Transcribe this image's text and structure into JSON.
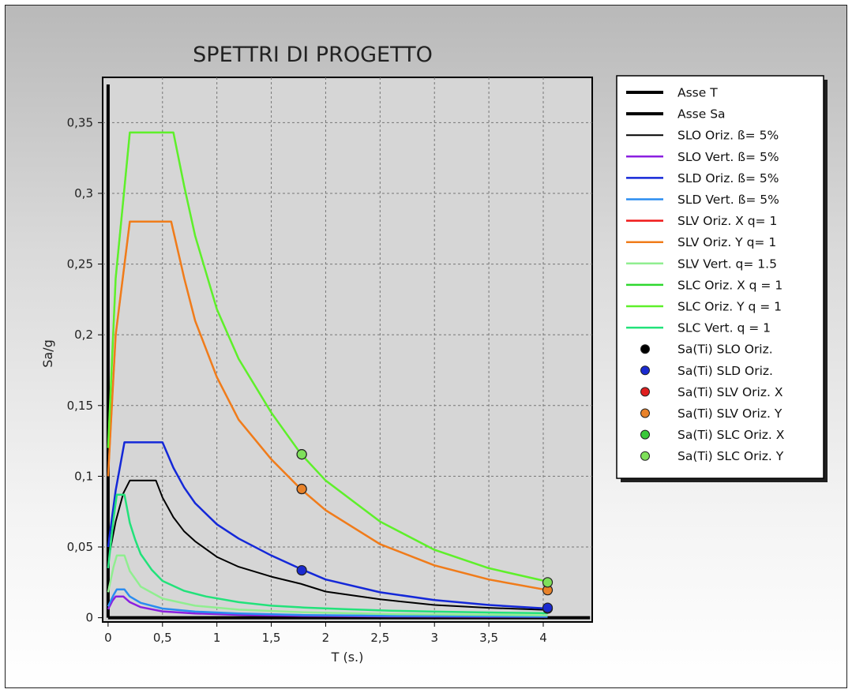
{
  "chart_data": {
    "type": "line",
    "title": "SPETTRI DI PROGETTO",
    "xlabel": "T (s.)",
    "ylabel": "Sa/g",
    "xlim": [
      -0.05,
      4.45
    ],
    "ylim": [
      -0.003,
      0.382
    ],
    "grid": true,
    "legend_position": "right",
    "x_ticks": [
      {
        "value": 0,
        "label": "0"
      },
      {
        "value": 0.5,
        "label": "0,5"
      },
      {
        "value": 1,
        "label": "1"
      },
      {
        "value": 1.5,
        "label": "1,5"
      },
      {
        "value": 2,
        "label": "2"
      },
      {
        "value": 2.5,
        "label": "2,5"
      },
      {
        "value": 3,
        "label": "3"
      },
      {
        "value": 3.5,
        "label": "3,5"
      },
      {
        "value": 4,
        "label": "4"
      }
    ],
    "y_ticks": [
      {
        "value": 0,
        "label": "0"
      },
      {
        "value": 0.05,
        "label": "0,05"
      },
      {
        "value": 0.1,
        "label": "0,1"
      },
      {
        "value": 0.15,
        "label": "0,15"
      },
      {
        "value": 0.2,
        "label": "0,2"
      },
      {
        "value": 0.25,
        "label": "0,25"
      },
      {
        "value": 0.3,
        "label": "0,3"
      },
      {
        "value": 0.35,
        "label": "0,35"
      }
    ],
    "legend": [
      {
        "label": "Asse T",
        "color": "#000000",
        "kind": "line",
        "width": 4
      },
      {
        "label": "Asse Sa",
        "color": "#000000",
        "kind": "line",
        "width": 4
      },
      {
        "label": "SLO Oriz. ß= 5%",
        "color": "#000000",
        "kind": "line",
        "width": 2
      },
      {
        "label": "SLO Vert. ß= 5%",
        "color": "#8b1fe0",
        "kind": "line",
        "width": 2.5
      },
      {
        "label": "SLD Oriz. ß= 5%",
        "color": "#1428d8",
        "kind": "line",
        "width": 2.5
      },
      {
        "label": "SLD Vert. ß= 5%",
        "color": "#2a8cf0",
        "kind": "line",
        "width": 2.5
      },
      {
        "label": "SLV Oriz. X q= 1",
        "color": "#f01818",
        "kind": "line",
        "width": 2.5
      },
      {
        "label": "SLV Oriz. Y q= 1",
        "color": "#f07c1a",
        "kind": "line",
        "width": 2.5
      },
      {
        "label": "SLV Vert. q= 1.5",
        "color": "#90ee90",
        "kind": "line",
        "width": 2.5
      },
      {
        "label": "SLC Oriz. X q = 1",
        "color": "#2ed82e",
        "kind": "line",
        "width": 2.5
      },
      {
        "label": "SLC Oriz. Y q = 1",
        "color": "#5ef02a",
        "kind": "line",
        "width": 2.5
      },
      {
        "label": "SLC Vert. q = 1",
        "color": "#22e27a",
        "kind": "line",
        "width": 2.5
      },
      {
        "label": "Sa(Ti) SLO Oriz.",
        "color": "#000000",
        "kind": "marker"
      },
      {
        "label": "Sa(Ti) SLD Oriz.",
        "color": "#1a2ad0",
        "kind": "marker"
      },
      {
        "label": "Sa(Ti) SLV Oriz. X",
        "color": "#e02020",
        "kind": "marker"
      },
      {
        "label": "Sa(Ti) SLV Oriz. Y",
        "color": "#e8822a",
        "kind": "marker"
      },
      {
        "label": "Sa(Ti) SLC Oriz. X",
        "color": "#3ac83a",
        "kind": "marker"
      },
      {
        "label": "Sa(Ti) SLC Oriz. Y",
        "color": "#7ee05a",
        "kind": "marker"
      }
    ],
    "series": [
      {
        "name": "Asse T",
        "color": "#000000",
        "width": 4,
        "x": [
          0,
          4.43
        ],
        "y": [
          0,
          0
        ]
      },
      {
        "name": "Asse Sa",
        "color": "#000000",
        "width": 4,
        "x": [
          0,
          0
        ],
        "y": [
          0,
          0.377
        ]
      },
      {
        "name": "SLO Oriz. ß= 5%",
        "color": "#000000",
        "width": 2,
        "x": [
          0,
          0.07,
          0.14,
          0.2,
          0.3,
          0.44,
          0.5,
          0.6,
          0.7,
          0.8,
          1.0,
          1.2,
          1.5,
          1.77,
          2.0,
          2.5,
          3.0,
          3.5,
          4.04
        ],
        "y": [
          0.04,
          0.068,
          0.088,
          0.097,
          0.097,
          0.097,
          0.085,
          0.071,
          0.061,
          0.054,
          0.043,
          0.036,
          0.029,
          0.024,
          0.0185,
          0.013,
          0.009,
          0.007,
          0.0055
        ]
      },
      {
        "name": "SLO Vert. ß= 5%",
        "color": "#8b1fe0",
        "width": 2.5,
        "x": [
          0,
          0.04,
          0.07,
          0.14,
          0.2,
          0.3,
          0.5,
          0.8,
          1.2,
          1.8,
          2.6,
          3.5,
          4.04
        ],
        "y": [
          0.006,
          0.012,
          0.015,
          0.015,
          0.011,
          0.0075,
          0.0045,
          0.003,
          0.002,
          0.0013,
          0.0009,
          0.0007,
          0.0006
        ]
      },
      {
        "name": "SLD Oriz. ß= 5%",
        "color": "#1428d8",
        "width": 2.5,
        "x": [
          0,
          0.07,
          0.15,
          0.25,
          0.35,
          0.5,
          0.6,
          0.7,
          0.8,
          1.0,
          1.2,
          1.5,
          1.77,
          2.0,
          2.5,
          3.0,
          3.5,
          4.04
        ],
        "y": [
          0.05,
          0.09,
          0.124,
          0.124,
          0.124,
          0.124,
          0.106,
          0.092,
          0.081,
          0.066,
          0.056,
          0.044,
          0.0345,
          0.027,
          0.018,
          0.0125,
          0.009,
          0.0065
        ]
      },
      {
        "name": "SLD Vert. ß= 5%",
        "color": "#2a8cf0",
        "width": 2.5,
        "x": [
          0,
          0.05,
          0.08,
          0.15,
          0.2,
          0.3,
          0.5,
          0.8,
          1.2,
          1.8,
          2.6,
          3.5,
          4.04
        ],
        "y": [
          0.008,
          0.016,
          0.02,
          0.02,
          0.015,
          0.0105,
          0.0065,
          0.0043,
          0.003,
          0.0019,
          0.0013,
          0.001,
          0.0008
        ]
      },
      {
        "name": "SLV Oriz. X q= 1",
        "color": "#f01818",
        "width": 2,
        "x": [
          0,
          0.07,
          0.2,
          0.58,
          0.7,
          0.8,
          1.0,
          1.2,
          1.5,
          1.77,
          2.0,
          2.5,
          3.0,
          3.5,
          4.04
        ],
        "y": [
          0.1,
          0.2,
          0.28,
          0.28,
          0.24,
          0.21,
          0.17,
          0.14,
          0.112,
          0.091,
          0.076,
          0.052,
          0.037,
          0.027,
          0.0195
        ]
      },
      {
        "name": "SLV Oriz. Y q= 1",
        "color": "#f07c1a",
        "width": 2.5,
        "x": [
          0,
          0.07,
          0.2,
          0.58,
          0.7,
          0.8,
          1.0,
          1.2,
          1.5,
          1.77,
          2.0,
          2.5,
          3.0,
          3.5,
          4.04
        ],
        "y": [
          0.1,
          0.2,
          0.28,
          0.28,
          0.24,
          0.21,
          0.17,
          0.14,
          0.112,
          0.091,
          0.076,
          0.052,
          0.037,
          0.027,
          0.0195
        ]
      },
      {
        "name": "SLV Vert. q= 1.5",
        "color": "#90ee90",
        "width": 2.5,
        "x": [
          0,
          0.05,
          0.08,
          0.15,
          0.2,
          0.3,
          0.5,
          0.8,
          1.2,
          1.8,
          2.6,
          3.5,
          4.04
        ],
        "y": [
          0.018,
          0.036,
          0.044,
          0.044,
          0.033,
          0.022,
          0.0135,
          0.0085,
          0.0057,
          0.0038,
          0.0026,
          0.002,
          0.0017
        ]
      },
      {
        "name": "SLC Oriz. X q = 1",
        "color": "#2ed82e",
        "width": 2,
        "x": [
          0,
          0.07,
          0.2,
          0.6,
          0.7,
          0.8,
          1.0,
          1.2,
          1.5,
          1.77,
          2.0,
          2.5,
          3.0,
          3.5,
          4.04
        ],
        "y": [
          0.12,
          0.24,
          0.343,
          0.343,
          0.305,
          0.27,
          0.218,
          0.183,
          0.145,
          0.116,
          0.097,
          0.068,
          0.048,
          0.035,
          0.0255
        ]
      },
      {
        "name": "SLC Oriz. Y q = 1",
        "color": "#5ef02a",
        "width": 2.5,
        "x": [
          0,
          0.07,
          0.2,
          0.6,
          0.7,
          0.8,
          1.0,
          1.2,
          1.5,
          1.77,
          2.0,
          2.5,
          3.0,
          3.5,
          4.04
        ],
        "y": [
          0.12,
          0.24,
          0.343,
          0.343,
          0.305,
          0.27,
          0.218,
          0.183,
          0.145,
          0.116,
          0.097,
          0.068,
          0.048,
          0.035,
          0.0255
        ]
      },
      {
        "name": "SLC Vert. q = 1",
        "color": "#22e27a",
        "width": 2.5,
        "x": [
          0,
          0.05,
          0.08,
          0.15,
          0.2,
          0.25,
          0.3,
          0.4,
          0.5,
          0.7,
          0.9,
          1.2,
          1.5,
          1.8,
          2.2,
          2.6,
          3.0,
          3.5,
          4.04
        ],
        "y": [
          0.035,
          0.07,
          0.087,
          0.087,
          0.067,
          0.055,
          0.045,
          0.034,
          0.026,
          0.019,
          0.015,
          0.011,
          0.0085,
          0.0072,
          0.006,
          0.005,
          0.0043,
          0.0037,
          0.0032
        ]
      }
    ],
    "points": [
      {
        "name": "Sa(Ti) SLO Oriz.",
        "color": "#000000",
        "x": 4.04,
        "y": 0.0065
      },
      {
        "name": "Sa(Ti) SLD Oriz.",
        "color": "#1a2ad0",
        "x": 1.78,
        "y": 0.0335
      },
      {
        "name": "Sa(Ti) SLD Oriz.",
        "color": "#1a2ad0",
        "x": 4.04,
        "y": 0.007
      },
      {
        "name": "Sa(Ti) SLV Oriz. X",
        "color": "#e02020",
        "x": 1.78,
        "y": 0.091
      },
      {
        "name": "Sa(Ti) SLV Oriz. Y",
        "color": "#e8822a",
        "x": 1.78,
        "y": 0.091
      },
      {
        "name": "Sa(Ti) SLV Oriz. Y",
        "color": "#e8822a",
        "x": 4.04,
        "y": 0.0195
      },
      {
        "name": "Sa(Ti) SLC Oriz. X",
        "color": "#3ac83a",
        "x": 1.78,
        "y": 0.1155
      },
      {
        "name": "Sa(Ti) SLC Oriz. Y",
        "color": "#7ee05a",
        "x": 1.78,
        "y": 0.1155
      },
      {
        "name": "Sa(Ti) SLC Oriz. Y",
        "color": "#7ee05a",
        "x": 4.04,
        "y": 0.025
      }
    ]
  }
}
